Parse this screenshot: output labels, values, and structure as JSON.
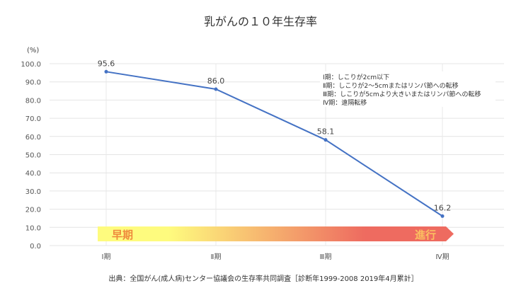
{
  "chart_data": {
    "type": "line",
    "title": "乳がんの１０年生存率",
    "ylabel": "(%)",
    "xlabel": "",
    "categories": [
      "Ⅰ期",
      "Ⅱ期",
      "Ⅲ期",
      "Ⅳ期"
    ],
    "series": [
      {
        "name": "10年生存率",
        "values": [
          95.6,
          86.0,
          58.1,
          16.2
        ],
        "color": "#4472c4"
      }
    ],
    "data_labels": [
      "95.6",
      "86.0",
      "58.1",
      "16.2"
    ],
    "ylim": [
      0,
      100
    ],
    "yticks": [
      "0.0",
      "10.0",
      "20.0",
      "30.0",
      "40.0",
      "50.0",
      "60.0",
      "70.0",
      "80.0",
      "90.0",
      "100.0"
    ],
    "grid": true,
    "legend_notes": [
      "Ⅰ期：しこりが2cm以下",
      "Ⅱ期：しこりが2〜5cmまたはリンパ節への転移",
      "Ⅲ期：しこりが5cmより大きいまたはリンパ節への転移",
      "Ⅳ期：遠隔転移"
    ],
    "arrow": {
      "start_label": "早期",
      "end_label": "進行",
      "start_color": "#fefb7e",
      "end_color": "#ee6b60"
    },
    "source": "出典：全国がん(成人病)センター協議会の生存率共同調査［診断年1999-2008 2019年4月累計］"
  }
}
